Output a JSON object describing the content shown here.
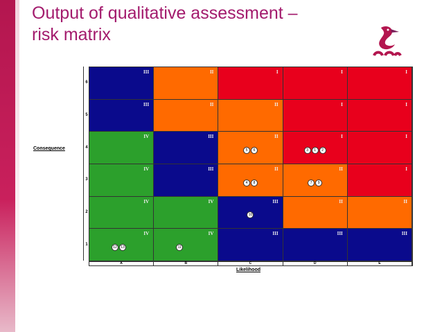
{
  "title": {
    "line1": "Output of qualitative assessment –",
    "line2": "risk matrix"
  },
  "colors": {
    "title": "#a31b6d",
    "accent": "#b3164f",
    "blue": "#0a0a8c",
    "orange": "#ff6a00",
    "red": "#e8001c",
    "green": "#2ca02c"
  },
  "matrix": {
    "y_label": "Consequence",
    "x_label": "Likelihood",
    "y_ticks": [
      "6",
      "5",
      "4",
      "3",
      "2",
      "1"
    ],
    "x_ticks": [
      "A",
      "B",
      "C",
      "D",
      "E"
    ],
    "rows": [
      {
        "consequence": "6",
        "cells": [
          {
            "rating": "III",
            "color": "blue",
            "risks": []
          },
          {
            "rating": "II",
            "color": "orange",
            "risks": []
          },
          {
            "rating": "I",
            "color": "red",
            "risks": []
          },
          {
            "rating": "I",
            "color": "red",
            "risks": []
          },
          {
            "rating": "I",
            "color": "red",
            "risks": []
          }
        ]
      },
      {
        "consequence": "5",
        "cells": [
          {
            "rating": "III",
            "color": "blue",
            "risks": []
          },
          {
            "rating": "II",
            "color": "orange",
            "risks": []
          },
          {
            "rating": "II",
            "color": "orange",
            "risks": []
          },
          {
            "rating": "I",
            "color": "red",
            "risks": []
          },
          {
            "rating": "I",
            "color": "red",
            "risks": []
          }
        ]
      },
      {
        "consequence": "4",
        "cells": [
          {
            "rating": "IV",
            "color": "green",
            "risks": []
          },
          {
            "rating": "III",
            "color": "blue",
            "risks": []
          },
          {
            "rating": "II",
            "color": "orange",
            "risks": [
              "5",
              "6"
            ]
          },
          {
            "rating": "I",
            "color": "red",
            "risks": [
              "3",
              "1",
              "2"
            ]
          },
          {
            "rating": "I",
            "color": "red",
            "risks": []
          }
        ]
      },
      {
        "consequence": "3",
        "cells": [
          {
            "rating": "IV",
            "color": "green",
            "risks": []
          },
          {
            "rating": "III",
            "color": "blue",
            "risks": []
          },
          {
            "rating": "II",
            "color": "orange",
            "risks": [
              "4",
              "8"
            ]
          },
          {
            "rating": "II",
            "color": "orange",
            "risks": [
              "7",
              "9"
            ]
          },
          {
            "rating": "I",
            "color": "red",
            "risks": []
          }
        ]
      },
      {
        "consequence": "2",
        "cells": [
          {
            "rating": "IV",
            "color": "green",
            "risks": []
          },
          {
            "rating": "IV",
            "color": "green",
            "risks": []
          },
          {
            "rating": "III",
            "color": "blue",
            "risks": [
              "10"
            ]
          },
          {
            "rating": "II",
            "color": "orange",
            "risks": []
          },
          {
            "rating": "II",
            "color": "orange",
            "risks": []
          }
        ]
      },
      {
        "consequence": "1",
        "cells": [
          {
            "rating": "IV",
            "color": "green",
            "risks": [
              "12",
              "13"
            ]
          },
          {
            "rating": "IV",
            "color": "green",
            "risks": [
              "11"
            ]
          },
          {
            "rating": "III",
            "color": "blue",
            "risks": []
          },
          {
            "rating": "III",
            "color": "blue",
            "risks": []
          },
          {
            "rating": "III",
            "color": "blue",
            "risks": []
          }
        ]
      }
    ]
  }
}
